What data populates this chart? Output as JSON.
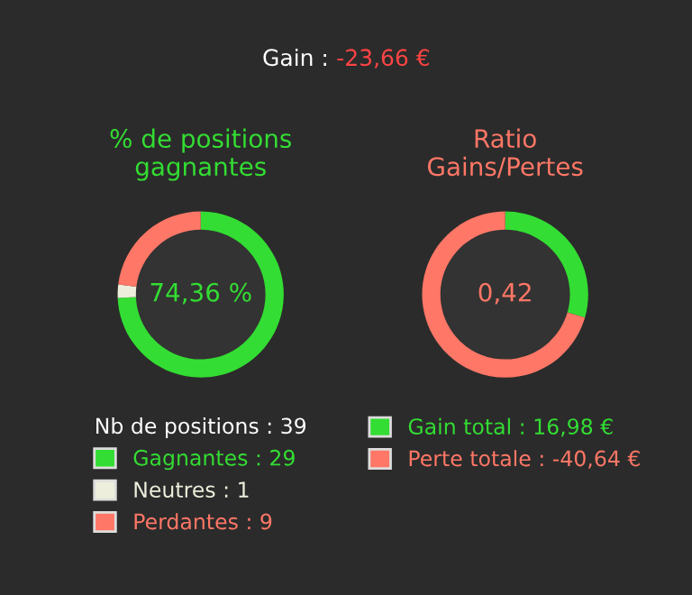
{
  "chart_data": [
    {
      "type": "other",
      "annotations": [
        "Gain : ",
        "-23,66 €"
      ]
    },
    {
      "type": "donut",
      "title": "% de positions\ngagnantes",
      "legend_title": "Nb de positions : 39",
      "legend": "bottom",
      "categories": [
        "Gagnantes : 29",
        "Neutres : 1",
        "Perdantes : 9"
      ],
      "values": [
        29,
        1,
        9
      ],
      "colors": [
        "#33dd33",
        "#eeeedd",
        "#ff7766"
      ],
      "annotations": [
        "74,36 %"
      ]
    },
    {
      "type": "donut",
      "title": "Ratio\nGains/Pertes",
      "legend": "bottom",
      "categories": [
        "Gain total : 16,98 €",
        "Perte totale : -40,64 €"
      ],
      "values": [
        16.98,
        40.64
      ],
      "colors": [
        "#33dd33",
        "#ff7766"
      ],
      "annotations": [
        "0,42"
      ]
    }
  ]
}
